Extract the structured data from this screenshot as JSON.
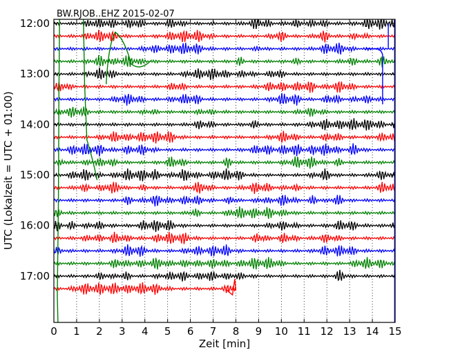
{
  "chart_data": {
    "type": "line",
    "title": "BW.RJOB..EHZ 2015-02-07",
    "xlabel": "Zeit  [min]",
    "ylabel": "UTC (Lokalzeit = UTC + 01:00)",
    "xlim": [
      0,
      15
    ],
    "ylim_hours": [
      11.917,
      17.917
    ],
    "x_ticks": [
      0,
      1,
      2,
      3,
      4,
      5,
      6,
      7,
      8,
      9,
      10,
      11,
      12,
      13,
      14,
      15
    ],
    "x_tick_labels": [
      "0",
      "1",
      "2",
      "3",
      "4",
      "5",
      "6",
      "7",
      "8",
      "9",
      "10",
      "11",
      "12",
      "13",
      "14",
      "15"
    ],
    "y_ticks": [
      12,
      13,
      14,
      15,
      16,
      17
    ],
    "y_tick_labels": [
      "12:00",
      "13:00",
      "14:00",
      "15:00",
      "16:00",
      "17:00"
    ],
    "grid": {
      "x": "dotted",
      "y": "none"
    },
    "colors": [
      "#000000",
      "#ff0000",
      "#0000ff",
      "#008000"
    ],
    "traces": {
      "start": "12:00",
      "step_minutes": 15,
      "count": 22,
      "last_trace_end_minute": 8.0
    },
    "annotations": [
      "long-period green drift on 12:00 traces near 0.2–3 min",
      "blue step near 14.5 min on 12:30 trace",
      "spike on 17:15 red trace near 8 min"
    ]
  }
}
